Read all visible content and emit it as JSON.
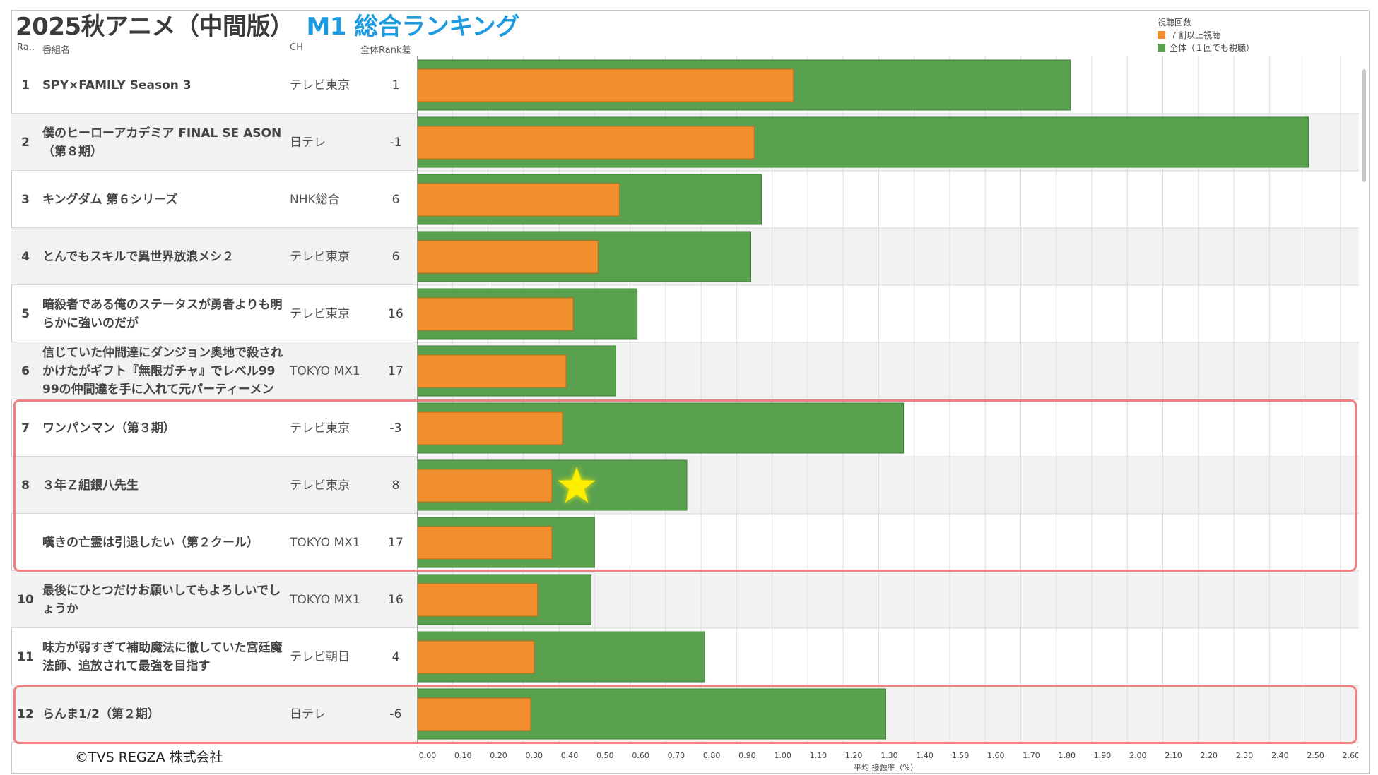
{
  "title": {
    "main": "2025秋アニメ（中間版）",
    "accent": "M1 総合ランキング"
  },
  "headers": {
    "rank": "Ra..",
    "name": "番組名",
    "ch": "CH",
    "diff": "全体Rank差"
  },
  "legend": {
    "title": "視聴回数",
    "items": [
      {
        "label": "７割以上視聴",
        "color": "#f28e2b"
      },
      {
        "label": "全体（１回でも視聴）",
        "color": "#59a14f"
      }
    ]
  },
  "copyright": "©TVS REGZA 株式会社",
  "highlight_color": "#ee8080",
  "star_color": "#ffee00",
  "chart_data": {
    "type": "bar",
    "orientation": "horizontal",
    "xlabel": "平均 接触率（%）",
    "xlim": [
      0,
      2.65
    ],
    "xticks": [
      "0.00",
      "0.10",
      "0.20",
      "0.30",
      "0.40",
      "0.50",
      "0.60",
      "0.70",
      "0.80",
      "0.90",
      "1.00",
      "1.10",
      "1.20",
      "1.30",
      "1.40",
      "1.50",
      "1.60",
      "1.70",
      "1.80",
      "1.90",
      "2.00",
      "2.10",
      "2.20",
      "2.30",
      "2.40",
      "2.50",
      "2.60"
    ],
    "grid": true,
    "series": [
      {
        "name": "全体（１回でも視聴）",
        "color": "#59a14f",
        "values": [
          1.84,
          2.51,
          0.97,
          0.94,
          0.62,
          0.56,
          1.37,
          0.76,
          0.5,
          0.49,
          0.81,
          1.32
        ]
      },
      {
        "name": "７割以上視聴",
        "color": "#f28e2b",
        "values": [
          1.06,
          0.95,
          0.57,
          0.51,
          0.44,
          0.42,
          0.41,
          0.38,
          0.38,
          0.34,
          0.33,
          0.32
        ]
      }
    ],
    "rows": [
      {
        "rank": "1",
        "name": "SPY×FAMILY Season 3",
        "ch": "テレビ東京",
        "diff": "1"
      },
      {
        "rank": "2",
        "name": "僕のヒーローアカデミア FINAL SE ASON（第８期）",
        "ch": "日テレ",
        "diff": "-1"
      },
      {
        "rank": "3",
        "name": "キングダム 第６シリーズ",
        "ch": "NHK総合",
        "diff": "6"
      },
      {
        "rank": "4",
        "name": "とんでもスキルで異世界放浪メシ２",
        "ch": "テレビ東京",
        "diff": "6"
      },
      {
        "rank": "5",
        "name": "暗殺者である俺のステータスが勇者よりも明らかに強いのだが",
        "ch": "テレビ東京",
        "diff": "16"
      },
      {
        "rank": "6",
        "name": "信じていた仲間達にダンジョン奥地で殺されかけたがギフト『無限ガチャ』でレベル99 99の仲間達を手に入れて元パーティーメン",
        "ch": "TOKYO MX1",
        "diff": "17"
      },
      {
        "rank": "7",
        "name": "ワンパンマン（第３期）",
        "ch": "テレビ東京",
        "diff": "-3"
      },
      {
        "rank": "8",
        "name": "３年Ｚ組銀八先生",
        "ch": "テレビ東京",
        "diff": "8"
      },
      {
        "rank": "",
        "name": "嘆きの亡霊は引退したい（第２クール）",
        "ch": "TOKYO MX1",
        "diff": "17"
      },
      {
        "rank": "10",
        "name": "最後にひとつだけお願いしてもよろしいでしょうか",
        "ch": "TOKYO MX1",
        "diff": "16"
      },
      {
        "rank": "11",
        "name": "味方が弱すぎて補助魔法に徹していた宮廷魔法師、追放されて最強を目指す",
        "ch": "テレビ朝日",
        "diff": "4"
      },
      {
        "rank": "12",
        "name": "らんま1/2（第２期）",
        "ch": "日テレ",
        "diff": "-6"
      }
    ]
  }
}
